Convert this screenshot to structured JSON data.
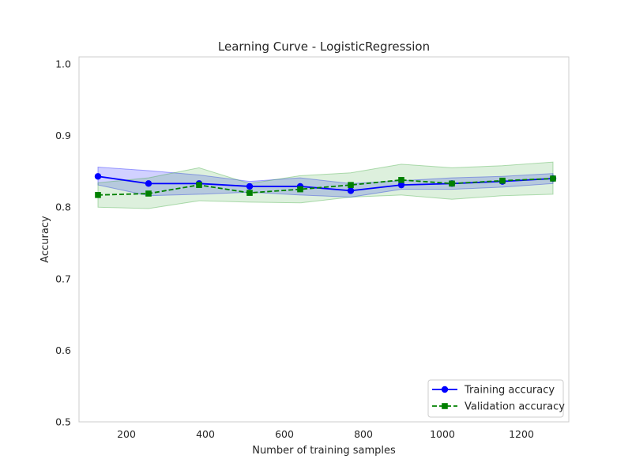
{
  "chart_data": {
    "type": "line",
    "title": "Learning Curve - LogisticRegression",
    "xlabel": "Number of training samples",
    "ylabel": "Accuracy",
    "xlim": [
      80,
      1320
    ],
    "ylim": [
      0.5,
      1.01
    ],
    "xticks": [
      200,
      400,
      600,
      800,
      1000,
      1200
    ],
    "yticks": [
      0.5,
      0.6,
      0.7,
      0.8,
      0.9,
      1.0
    ],
    "xtick_labels": [
      "200",
      "400",
      "600",
      "800",
      "1000",
      "1200"
    ],
    "ytick_labels": [
      "0.5",
      "0.6",
      "0.7",
      "0.8",
      "0.9",
      "1.0"
    ],
    "grid": false,
    "legend_position": "lower-right",
    "x": [
      128,
      256,
      384,
      512,
      640,
      768,
      896,
      1024,
      1152,
      1280
    ],
    "series": [
      {
        "name": "Training accuracy",
        "color": "#0000ff",
        "band_color": "#0000ff",
        "line_style": "solid",
        "marker": "circle",
        "values": [
          0.843,
          0.833,
          0.833,
          0.829,
          0.829,
          0.823,
          0.831,
          0.833,
          0.836,
          0.84
        ],
        "lower": [
          0.831,
          0.816,
          0.818,
          0.821,
          0.817,
          0.814,
          0.825,
          0.825,
          0.828,
          0.833
        ],
        "upper": [
          0.856,
          0.851,
          0.845,
          0.836,
          0.841,
          0.833,
          0.837,
          0.841,
          0.843,
          0.847
        ]
      },
      {
        "name": "Validation accuracy",
        "color": "#008000",
        "band_color": "#2ca02c",
        "line_style": "dashed",
        "marker": "square",
        "values": [
          0.817,
          0.819,
          0.831,
          0.82,
          0.825,
          0.831,
          0.838,
          0.833,
          0.837,
          0.84
        ],
        "lower": [
          0.8,
          0.798,
          0.809,
          0.807,
          0.806,
          0.814,
          0.817,
          0.811,
          0.816,
          0.818
        ],
        "upper": [
          0.834,
          0.841,
          0.855,
          0.833,
          0.844,
          0.848,
          0.86,
          0.855,
          0.858,
          0.863
        ]
      }
    ]
  }
}
